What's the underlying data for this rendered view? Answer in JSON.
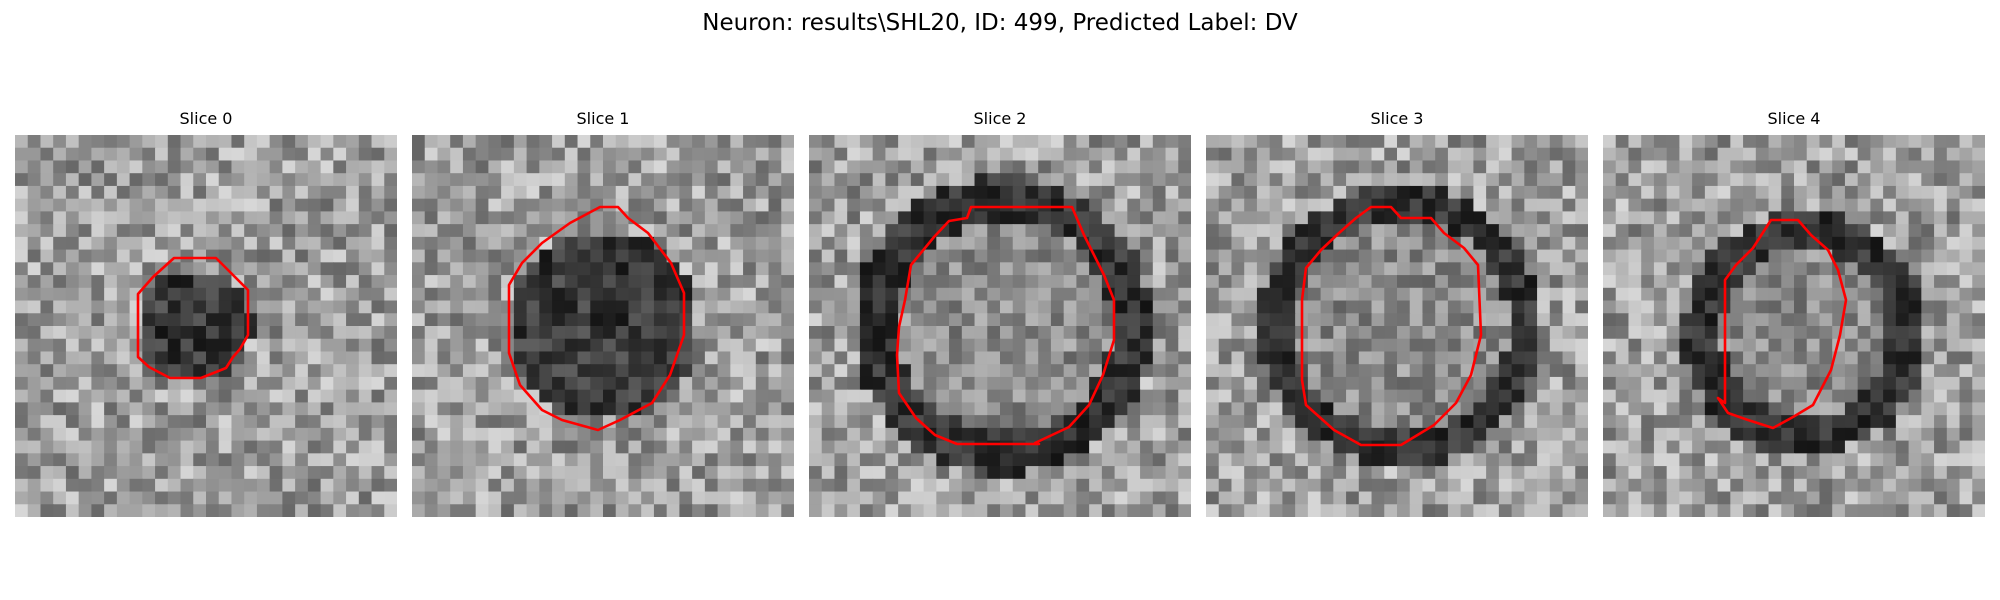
{
  "figure": {
    "title": "Neuron: results\\SHL20, ID: 499, Predicted Label: DV"
  },
  "panels": [
    {
      "title": "Slice 0",
      "image": "noisy grayscale micrograph with dark round neuron body",
      "overlay": "red contour outline"
    },
    {
      "title": "Slice 1",
      "image": "noisy grayscale micrograph with dark round neuron body",
      "overlay": "red contour outline"
    },
    {
      "title": "Slice 2",
      "image": "noisy grayscale micrograph with dark round neuron body",
      "overlay": "red contour outline"
    },
    {
      "title": "Slice 3",
      "image": "noisy grayscale micrograph with dark round neuron body",
      "overlay": "red contour outline"
    },
    {
      "title": "Slice 4",
      "image": "noisy grayscale micrograph with dark round neuron body",
      "overlay": "red contour outline"
    }
  ],
  "colors": {
    "contour": "#ff0000",
    "background": "#ffffff"
  }
}
